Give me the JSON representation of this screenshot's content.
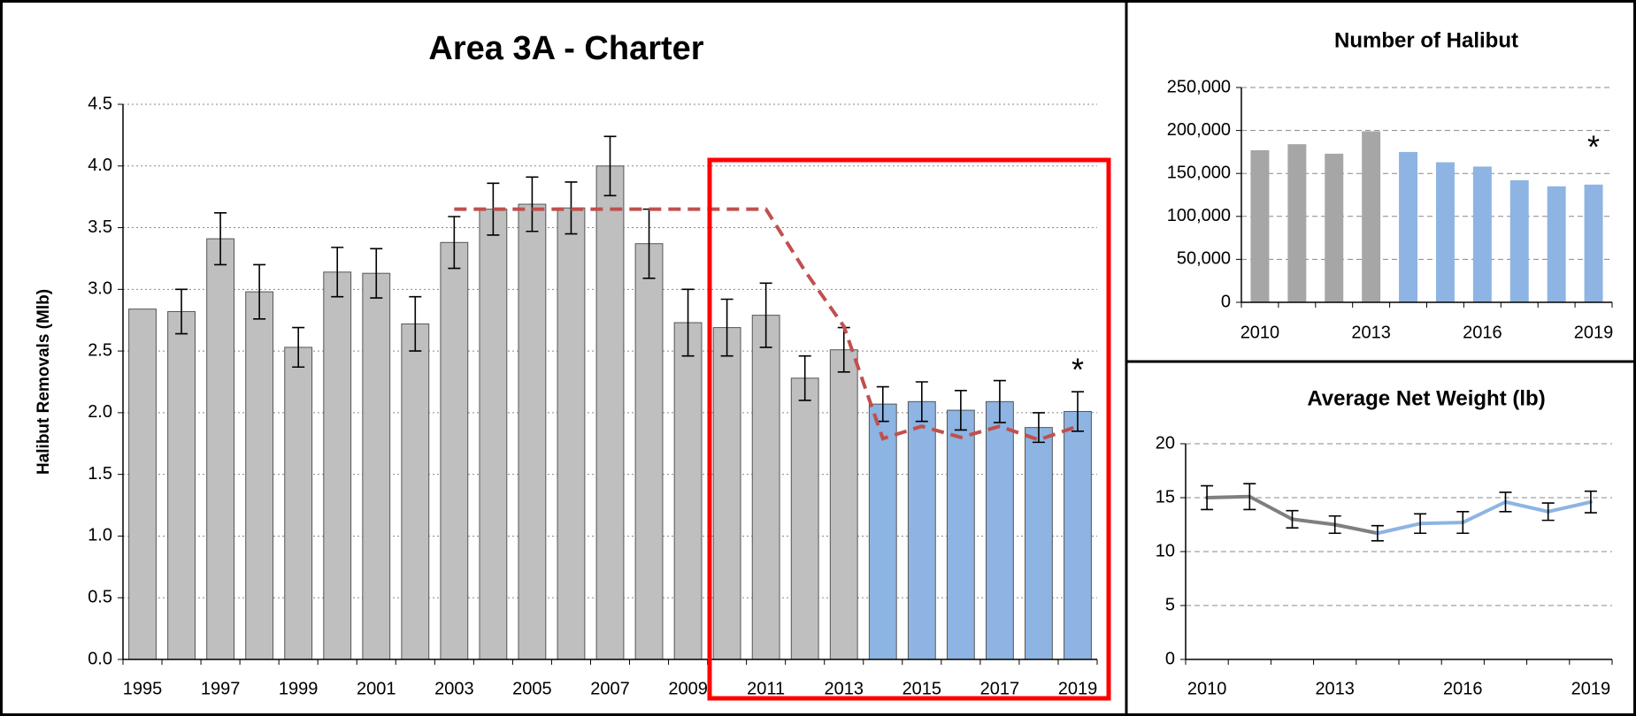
{
  "chart_data": [
    {
      "type": "bar",
      "title": "Area 3A - Charter",
      "y_label": "Halibut Removals (Mlb)",
      "categories": [
        "1995",
        null,
        "1997",
        null,
        "1999",
        null,
        "2001",
        null,
        "2003",
        null,
        "2005",
        null,
        "2007",
        null,
        "2009",
        null,
        "2011",
        null,
        "2013",
        null,
        "2015",
        null,
        "2017",
        null,
        "2019"
      ],
      "values": [
        2.84,
        2.82,
        3.41,
        2.98,
        2.53,
        3.14,
        3.13,
        2.72,
        3.38,
        3.65,
        3.69,
        3.66,
        4.0,
        3.37,
        2.73,
        2.69,
        2.79,
        2.28,
        2.51,
        2.07,
        2.09,
        2.02,
        2.09,
        1.88,
        2.01
      ],
      "errors": [
        null,
        0.18,
        0.21,
        0.22,
        0.16,
        0.2,
        0.2,
        0.22,
        0.21,
        0.21,
        0.22,
        0.21,
        0.24,
        0.28,
        0.27,
        0.23,
        0.26,
        0.18,
        0.18,
        0.14,
        0.16,
        0.16,
        0.17,
        0.12,
        0.16
      ],
      "colors": [
        "#bfbfbf",
        "#bfbfbf",
        "#bfbfbf",
        "#bfbfbf",
        "#bfbfbf",
        "#bfbfbf",
        "#bfbfbf",
        "#bfbfbf",
        "#bfbfbf",
        "#bfbfbf",
        "#bfbfbf",
        "#bfbfbf",
        "#bfbfbf",
        "#bfbfbf",
        "#bfbfbf",
        "#bfbfbf",
        "#bfbfbf",
        "#bfbfbf",
        "#bfbfbf",
        "#8db4e2",
        "#8db4e2",
        "#8db4e2",
        "#8db4e2",
        "#8db4e2",
        "#8db4e2"
      ],
      "lines": [
        {
          "color": "#c0504d",
          "dashed": true,
          "values": [
            null,
            null,
            null,
            null,
            null,
            null,
            null,
            null,
            3.65,
            3.65,
            3.65,
            3.65,
            3.65,
            3.65,
            3.65,
            3.65,
            3.65,
            3.15,
            2.7,
            1.79,
            1.89,
            1.8,
            1.89,
            1.78,
            1.89
          ]
        }
      ],
      "annotation": "*",
      "ylim": [
        0,
        4.5
      ],
      "yticks": [
        {
          "value": 0,
          "label": "0.0"
        },
        0.5,
        {
          "value": 1,
          "label": "1.0"
        },
        1.5,
        {
          "value": 2,
          "label": "2.0"
        },
        2.5,
        {
          "value": 3,
          "label": "3.0"
        },
        3.5,
        {
          "value": 4,
          "label": "4.0"
        },
        4.5
      ],
      "grid": true
    },
    {
      "type": "bar",
      "title": "Number of Halibut",
      "categories": [
        "2010",
        null,
        null,
        "2013",
        null,
        null,
        "2016",
        null,
        null,
        "2019"
      ],
      "values": [
        177000,
        184000,
        173000,
        199000,
        175000,
        163000,
        158000,
        142000,
        135000,
        137000
      ],
      "colors": [
        "#a6a6a6",
        "#a6a6a6",
        "#a6a6a6",
        "#a6a6a6",
        "#8db4e2",
        "#8db4e2",
        "#8db4e2",
        "#8db4e2",
        "#8db4e2",
        "#8db4e2"
      ],
      "annotation": "*",
      "ylim": [
        0,
        250000
      ],
      "yticks": [
        0,
        {
          "value": 50000,
          "label": "50,000"
        },
        {
          "value": 100000,
          "label": "100,000"
        },
        {
          "value": 150000,
          "label": "150,000"
        },
        {
          "value": 200000,
          "label": "200,000"
        },
        {
          "value": 250000,
          "label": "250,000"
        }
      ],
      "grid": true
    },
    {
      "type": "line",
      "title": "Average Net Weight (lb)",
      "categories": [
        "2010",
        null,
        null,
        "2013",
        null,
        null,
        "2016",
        null,
        null,
        "2019"
      ],
      "values": [
        15.0,
        15.1,
        13.0,
        12.5,
        11.7,
        12.6,
        12.7,
        14.6,
        13.7,
        14.6
      ],
      "errors": [
        1.1,
        1.2,
        0.8,
        0.8,
        0.7,
        0.9,
        1.0,
        0.9,
        0.8,
        1.0
      ],
      "colors": [
        "#7f7f7f",
        "#7f7f7f",
        "#7f7f7f",
        "#7f7f7f",
        "#7f7f7f",
        "#8db4e2",
        "#8db4e2",
        "#8db4e2",
        "#8db4e2",
        "#8db4e2"
      ],
      "ylim": [
        0,
        20
      ],
      "yticks": [
        0,
        5,
        10,
        15,
        20
      ],
      "grid": true
    }
  ]
}
